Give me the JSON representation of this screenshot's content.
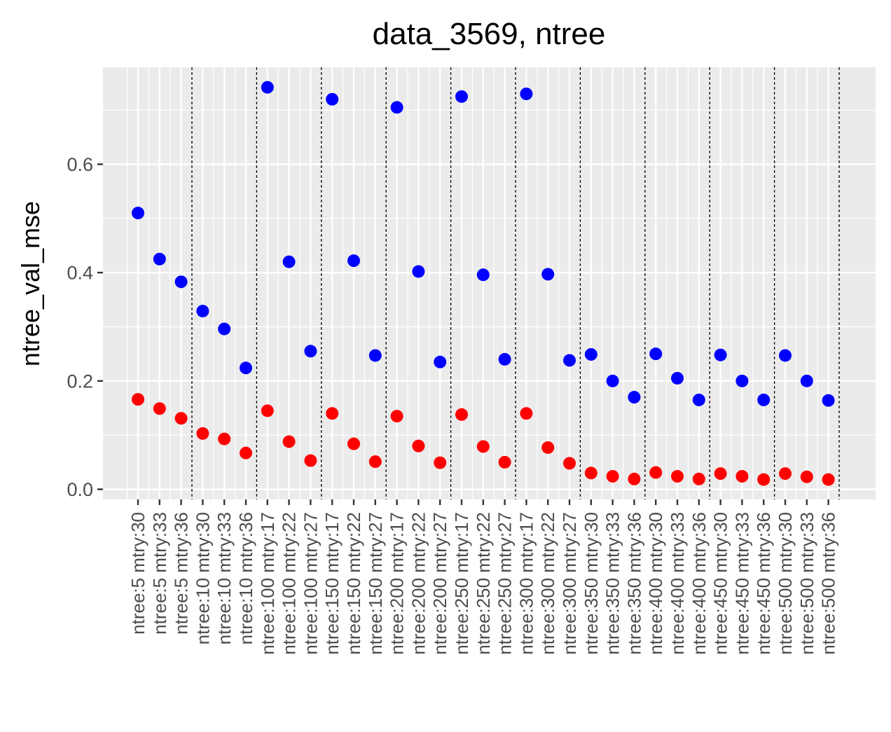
{
  "chart_data": {
    "type": "scatter",
    "title": "data_3569, ntree",
    "xlabel": "",
    "ylabel": "ntree_val_mse",
    "ylim": [
      -0.02,
      0.77
    ],
    "yticks": [
      "0.0",
      "0.2",
      "0.4",
      "0.6"
    ],
    "ytick_values": [
      0.0,
      0.2,
      0.4,
      0.6
    ],
    "grid": true,
    "legend": "none",
    "categories": [
      "ntree:5 mtry:30",
      "ntree:5 mtry:33",
      "ntree:5 mtry:36",
      "ntree:10 mtry:30",
      "ntree:10 mtry:33",
      "ntree:10 mtry:36",
      "ntree:100 mtry:17",
      "ntree:100 mtry:22",
      "ntree:100 mtry:27",
      "ntree:150 mtry:17",
      "ntree:150 mtry:22",
      "ntree:150 mtry:27",
      "ntree:200 mtry:17",
      "ntree:200 mtry:22",
      "ntree:200 mtry:27",
      "ntree:250 mtry:17",
      "ntree:250 mtry:22",
      "ntree:250 mtry:27",
      "ntree:300 mtry:17",
      "ntree:300 mtry:22",
      "ntree:300 mtry:27",
      "ntree:350 mtry:30",
      "ntree:350 mtry:33",
      "ntree:350 mtry:36",
      "ntree:400 mtry:30",
      "ntree:400 mtry:33",
      "ntree:400 mtry:36",
      "ntree:450 mtry:30",
      "ntree:450 mtry:33",
      "ntree:450 mtry:36",
      "ntree:500 mtry:30",
      "ntree:500 mtry:33",
      "ntree:500 mtry:36"
    ],
    "group_separators_after_index": [
      2,
      5,
      8,
      11,
      14,
      17,
      20,
      23,
      26,
      29,
      32
    ],
    "series": [
      {
        "color": "#0000ff",
        "values": [
          0.51,
          0.425,
          0.383,
          0.329,
          0.296,
          0.224,
          0.742,
          0.42,
          0.255,
          0.72,
          0.422,
          0.247,
          0.705,
          0.402,
          0.235,
          0.725,
          0.396,
          0.24,
          0.73,
          0.397,
          0.238,
          0.249,
          0.2,
          0.17,
          0.25,
          0.205,
          0.165,
          0.248,
          0.2,
          0.165,
          0.247,
          0.2,
          0.164
        ]
      },
      {
        "color": "#ff0000",
        "values": [
          0.166,
          0.149,
          0.131,
          0.103,
          0.093,
          0.067,
          0.145,
          0.088,
          0.053,
          0.14,
          0.084,
          0.051,
          0.135,
          0.08,
          0.049,
          0.138,
          0.079,
          0.05,
          0.14,
          0.077,
          0.048,
          0.03,
          0.024,
          0.019,
          0.031,
          0.024,
          0.019,
          0.029,
          0.024,
          0.018,
          0.029,
          0.023,
          0.018
        ]
      }
    ]
  }
}
